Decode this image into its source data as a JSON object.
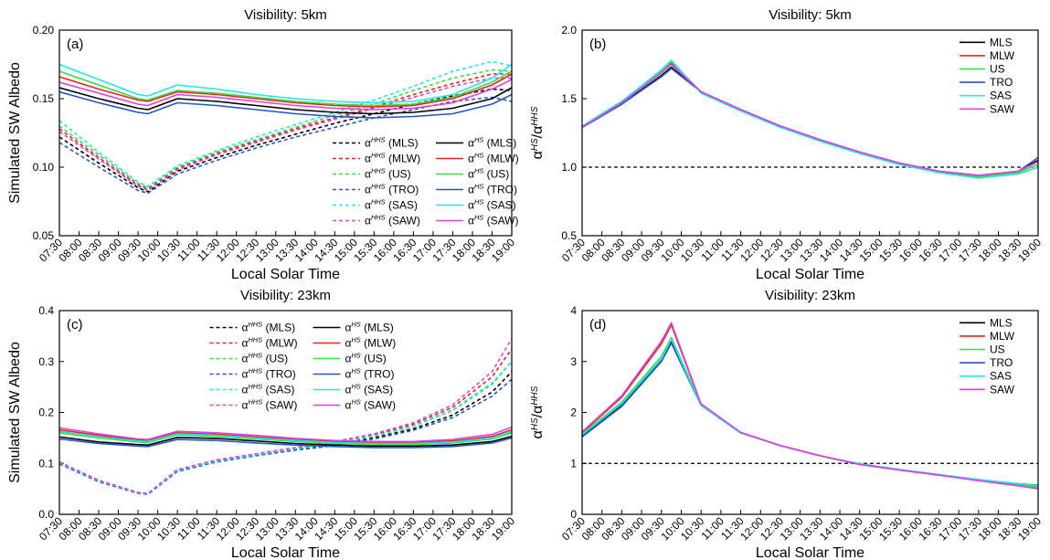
{
  "chart_data": [
    {
      "type": "line",
      "title": "Visibility: 5km",
      "panel_label": "(a)",
      "xlabel": "Local Solar Time",
      "ylabel": "Simulated SW Albedo",
      "x": [
        "07:30",
        "08:30",
        "09:30",
        "09:45",
        "10:30",
        "11:30",
        "12:30",
        "13:30",
        "14:30",
        "15:30",
        "16:30",
        "17:30",
        "18:30",
        "19:00"
      ],
      "xlim": [
        "07:30",
        "19:00"
      ],
      "xticks": [
        "07:30",
        "08:00",
        "08:30",
        "09:00",
        "09:30",
        "10:00",
        "10:30",
        "11:00",
        "11:30",
        "12:00",
        "12:30",
        "13:00",
        "13:30",
        "14:00",
        "14:30",
        "15:00",
        "15:30",
        "16:00",
        "16:30",
        "17:00",
        "17:30",
        "18:00",
        "18:30",
        "19:00"
      ],
      "ylim": [
        0.05,
        0.2
      ],
      "yticks": [
        0.05,
        {
          "value": 0.1,
          "label": "0.10"
        },
        0.15,
        {
          "value": 0.2,
          "label": "0.20"
        }
      ],
      "legend": "lower right",
      "series": [
        {
          "name": "αHHS (MLS)",
          "color": "#000000",
          "linestyle": "dashed",
          "values": [
            0.122,
            0.103,
            0.085,
            0.082,
            0.097,
            0.107,
            0.116,
            0.124,
            0.132,
            0.139,
            0.146,
            0.152,
            0.157,
            0.156
          ]
        },
        {
          "name": "αHHS (MLW)",
          "color": "#e8231c",
          "linestyle": "dashed",
          "values": [
            0.128,
            0.107,
            0.087,
            0.084,
            0.099,
            0.11,
            0.119,
            0.128,
            0.136,
            0.144,
            0.153,
            0.161,
            0.168,
            0.168
          ]
        },
        {
          "name": "αHHS (US)",
          "color": "#3cdc3c",
          "linestyle": "dashed",
          "values": [
            0.13,
            0.109,
            0.088,
            0.085,
            0.1,
            0.111,
            0.12,
            0.129,
            0.138,
            0.146,
            0.156,
            0.165,
            0.171,
            0.17
          ]
        },
        {
          "name": "αHHS (TRO)",
          "color": "#2356c8",
          "linestyle": "dashed",
          "values": [
            0.118,
            0.1,
            0.083,
            0.081,
            0.095,
            0.105,
            0.114,
            0.122,
            0.129,
            0.136,
            0.142,
            0.148,
            0.151,
            0.148
          ]
        },
        {
          "name": "αHHS (SAS)",
          "color": "#1ee8e8",
          "linestyle": "dashed",
          "values": [
            0.134,
            0.111,
            0.089,
            0.086,
            0.101,
            0.112,
            0.122,
            0.131,
            0.14,
            0.149,
            0.159,
            0.17,
            0.177,
            0.174
          ]
        },
        {
          "name": "αHHS (SAW)",
          "color": "#e040e0",
          "linestyle": "dashed",
          "values": [
            0.126,
            0.106,
            0.086,
            0.083,
            0.098,
            0.109,
            0.118,
            0.127,
            0.135,
            0.143,
            0.151,
            0.159,
            0.165,
            0.165
          ]
        },
        {
          "name": "αHS (MLS)",
          "color": "#000000",
          "linestyle": "solid",
          "values": [
            0.158,
            0.15,
            0.143,
            0.142,
            0.15,
            0.148,
            0.145,
            0.142,
            0.14,
            0.139,
            0.14,
            0.143,
            0.15,
            0.158
          ]
        },
        {
          "name": "αHS (MLW)",
          "color": "#e8231c",
          "linestyle": "solid",
          "values": [
            0.166,
            0.157,
            0.149,
            0.148,
            0.155,
            0.153,
            0.15,
            0.147,
            0.145,
            0.144,
            0.145,
            0.15,
            0.16,
            0.168
          ]
        },
        {
          "name": "αHS (US)",
          "color": "#3cdc3c",
          "linestyle": "solid",
          "values": [
            0.17,
            0.16,
            0.15,
            0.149,
            0.156,
            0.154,
            0.151,
            0.148,
            0.146,
            0.145,
            0.146,
            0.151,
            0.162,
            0.17
          ]
        },
        {
          "name": "αHS (TRO)",
          "color": "#2356c8",
          "linestyle": "solid",
          "values": [
            0.155,
            0.147,
            0.14,
            0.139,
            0.147,
            0.145,
            0.142,
            0.139,
            0.137,
            0.136,
            0.137,
            0.139,
            0.146,
            0.153
          ]
        },
        {
          "name": "αHS (SAS)",
          "color": "#1ee8e8",
          "linestyle": "solid",
          "values": [
            0.175,
            0.164,
            0.153,
            0.152,
            0.16,
            0.157,
            0.153,
            0.15,
            0.148,
            0.147,
            0.148,
            0.153,
            0.165,
            0.175
          ]
        },
        {
          "name": "αHS (SAW)",
          "color": "#e040e0",
          "linestyle": "solid",
          "values": [
            0.162,
            0.154,
            0.146,
            0.145,
            0.153,
            0.151,
            0.148,
            0.145,
            0.143,
            0.142,
            0.143,
            0.147,
            0.157,
            0.164
          ]
        }
      ]
    },
    {
      "type": "line",
      "title": "Visibility: 5km",
      "panel_label": "(b)",
      "xlabel": "Local Solar Time",
      "ylabel": "αHS/αHHS",
      "x": [
        "07:30",
        "08:30",
        "09:30",
        "09:45",
        "10:30",
        "11:30",
        "12:30",
        "13:30",
        "14:30",
        "15:30",
        "16:30",
        "17:30",
        "18:30",
        "19:00"
      ],
      "xlim": [
        "07:30",
        "19:00"
      ],
      "xticks": [
        "07:30",
        "08:00",
        "08:30",
        "09:00",
        "09:30",
        "10:00",
        "10:30",
        "11:00",
        "11:30",
        "12:00",
        "12:30",
        "13:00",
        "13:30",
        "14:00",
        "14:30",
        "15:00",
        "15:30",
        "16:00",
        "16:30",
        "17:00",
        "17:30",
        "18:00",
        "18:30",
        "19:00"
      ],
      "ylim": [
        0.5,
        2.0
      ],
      "yticks": [
        0.5,
        {
          "value": 1,
          "label": "1.0"
        },
        1.5,
        {
          "value": 2,
          "label": "2.0"
        }
      ],
      "legend": "upper right",
      "hline": 1,
      "series": [
        {
          "name": "MLS",
          "color": "#000000",
          "linestyle": "solid",
          "values": [
            1.29,
            1.46,
            1.67,
            1.73,
            1.55,
            1.42,
            1.3,
            1.2,
            1.11,
            1.03,
            0.97,
            0.94,
            0.97,
            1.05
          ]
        },
        {
          "name": "MLW",
          "color": "#e8231c",
          "linestyle": "solid",
          "values": [
            1.29,
            1.47,
            1.69,
            1.76,
            1.55,
            1.42,
            1.3,
            1.2,
            1.11,
            1.03,
            0.97,
            0.94,
            0.97,
            1.04
          ]
        },
        {
          "name": "US",
          "color": "#3cdc3c",
          "linestyle": "solid",
          "values": [
            1.3,
            1.48,
            1.7,
            1.77,
            1.55,
            1.42,
            1.3,
            1.19,
            1.1,
            1.02,
            0.96,
            0.93,
            0.96,
            1.02
          ]
        },
        {
          "name": "TRO",
          "color": "#2356c8",
          "linestyle": "solid",
          "values": [
            1.29,
            1.46,
            1.66,
            1.72,
            1.55,
            1.42,
            1.3,
            1.2,
            1.11,
            1.03,
            0.97,
            0.94,
            0.97,
            1.07
          ]
        },
        {
          "name": "SAS",
          "color": "#1ee8e8",
          "linestyle": "solid",
          "values": [
            1.3,
            1.48,
            1.71,
            1.78,
            1.54,
            1.41,
            1.29,
            1.19,
            1.1,
            1.02,
            0.96,
            0.92,
            0.95,
            1.0
          ]
        },
        {
          "name": "SAW",
          "color": "#e040e0",
          "linestyle": "solid",
          "values": [
            1.29,
            1.47,
            1.69,
            1.75,
            1.55,
            1.42,
            1.3,
            1.2,
            1.11,
            1.03,
            0.97,
            0.94,
            0.97,
            1.04
          ]
        }
      ]
    },
    {
      "type": "line",
      "title": "Visibility: 23km",
      "panel_label": "(c)",
      "xlabel": "Local Solar Time",
      "ylabel": "Simulated SW Albedo",
      "x": [
        "07:30",
        "08:30",
        "09:30",
        "09:45",
        "10:30",
        "11:30",
        "12:30",
        "13:30",
        "14:30",
        "15:30",
        "16:30",
        "17:30",
        "18:30",
        "19:00"
      ],
      "xlim": [
        "07:30",
        "19:00"
      ],
      "xticks": [
        "07:30",
        "08:00",
        "08:30",
        "09:00",
        "09:30",
        "10:00",
        "10:30",
        "11:00",
        "11:30",
        "12:00",
        "12:30",
        "13:00",
        "13:30",
        "14:00",
        "14:30",
        "15:00",
        "15:30",
        "16:00",
        "16:30",
        "17:00",
        "17:30",
        "18:00",
        "18:30",
        "19:00"
      ],
      "ylim": [
        0,
        0.4
      ],
      "yticks": [
        {
          "value": 0,
          "label": "0.0"
        },
        0.1,
        0.2,
        0.3,
        0.4
      ],
      "legend": "upper center",
      "series": [
        {
          "name": "αHHS (MLS)",
          "color": "#000000",
          "linestyle": "dashed",
          "values": [
            0.1,
            0.065,
            0.042,
            0.04,
            0.085,
            0.104,
            0.116,
            0.127,
            0.137,
            0.15,
            0.168,
            0.195,
            0.24,
            0.28
          ]
        },
        {
          "name": "αHHS (MLW)",
          "color": "#e8231c",
          "linestyle": "dashed",
          "values": [
            0.102,
            0.066,
            0.042,
            0.04,
            0.087,
            0.106,
            0.118,
            0.13,
            0.141,
            0.156,
            0.177,
            0.21,
            0.27,
            0.325
          ]
        },
        {
          "name": "αHHS (US)",
          "color": "#3cdc3c",
          "linestyle": "dashed",
          "values": [
            0.101,
            0.066,
            0.042,
            0.04,
            0.086,
            0.105,
            0.117,
            0.128,
            0.139,
            0.153,
            0.173,
            0.204,
            0.255,
            0.3
          ]
        },
        {
          "name": "αHHS (TRO)",
          "color": "#2356c8",
          "linestyle": "dashed",
          "values": [
            0.099,
            0.064,
            0.041,
            0.039,
            0.084,
            0.103,
            0.115,
            0.126,
            0.135,
            0.148,
            0.165,
            0.19,
            0.232,
            0.265
          ]
        },
        {
          "name": "αHHS (SAS)",
          "color": "#1ee8e8",
          "linestyle": "dashed",
          "values": [
            0.101,
            0.066,
            0.042,
            0.04,
            0.086,
            0.105,
            0.117,
            0.129,
            0.14,
            0.154,
            0.174,
            0.205,
            0.258,
            0.3
          ]
        },
        {
          "name": "αHHS (SAW)",
          "color": "#e040e0",
          "linestyle": "dashed",
          "values": [
            0.103,
            0.067,
            0.043,
            0.041,
            0.088,
            0.107,
            0.119,
            0.131,
            0.143,
            0.158,
            0.18,
            0.215,
            0.28,
            0.345
          ]
        },
        {
          "name": "αHS (MLS)",
          "color": "#000000",
          "linestyle": "solid",
          "values": [
            0.152,
            0.142,
            0.137,
            0.136,
            0.151,
            0.149,
            0.144,
            0.139,
            0.136,
            0.134,
            0.134,
            0.136,
            0.143,
            0.153
          ]
        },
        {
          "name": "αHS (MLW)",
          "color": "#e8231c",
          "linestyle": "solid",
          "values": [
            0.166,
            0.155,
            0.146,
            0.145,
            0.16,
            0.157,
            0.152,
            0.147,
            0.143,
            0.141,
            0.141,
            0.144,
            0.153,
            0.166
          ]
        },
        {
          "name": "αHS (US)",
          "color": "#3cdc3c",
          "linestyle": "solid",
          "values": [
            0.16,
            0.15,
            0.142,
            0.141,
            0.156,
            0.153,
            0.148,
            0.143,
            0.139,
            0.137,
            0.137,
            0.14,
            0.148,
            0.16
          ]
        },
        {
          "name": "αHS (TRO)",
          "color": "#2356c8",
          "linestyle": "solid",
          "values": [
            0.148,
            0.139,
            0.134,
            0.133,
            0.147,
            0.145,
            0.14,
            0.136,
            0.133,
            0.131,
            0.131,
            0.133,
            0.14,
            0.15
          ]
        },
        {
          "name": "αHS (SAS)",
          "color": "#1ee8e8",
          "linestyle": "solid",
          "values": [
            0.163,
            0.152,
            0.144,
            0.143,
            0.158,
            0.155,
            0.15,
            0.145,
            0.141,
            0.139,
            0.139,
            0.142,
            0.15,
            0.163
          ]
        },
        {
          "name": "αHS (SAW)",
          "color": "#e040e0",
          "linestyle": "solid",
          "values": [
            0.17,
            0.158,
            0.148,
            0.147,
            0.163,
            0.16,
            0.155,
            0.149,
            0.145,
            0.143,
            0.143,
            0.147,
            0.157,
            0.171
          ]
        }
      ]
    },
    {
      "type": "line",
      "title": "Visibility: 23km",
      "panel_label": "(d)",
      "xlabel": "Local Solar Time",
      "ylabel": "αHS/αHHS",
      "x": [
        "07:30",
        "08:30",
        "09:30",
        "09:45",
        "10:30",
        "11:30",
        "12:30",
        "13:30",
        "14:30",
        "15:30",
        "16:30",
        "17:30",
        "18:30",
        "19:00"
      ],
      "xlim": [
        "07:30",
        "19:00"
      ],
      "xticks": [
        "07:30",
        "08:00",
        "08:30",
        "09:00",
        "09:30",
        "10:00",
        "10:30",
        "11:00",
        "11:30",
        "12:00",
        "12:30",
        "13:00",
        "13:30",
        "14:00",
        "14:30",
        "15:00",
        "15:30",
        "16:00",
        "16:30",
        "17:00",
        "17:30",
        "18:00",
        "18:30",
        "19:00"
      ],
      "ylim": [
        0,
        4
      ],
      "yticks": [
        0,
        1,
        2,
        3,
        4
      ],
      "legend": "upper right",
      "hline": 1,
      "series": [
        {
          "name": "MLS",
          "color": "#000000",
          "linestyle": "solid",
          "values": [
            1.55,
            2.15,
            3.02,
            3.38,
            2.14,
            1.6,
            1.35,
            1.15,
            0.98,
            0.87,
            0.77,
            0.67,
            0.58,
            0.53
          ]
        },
        {
          "name": "MLW",
          "color": "#e8231c",
          "linestyle": "solid",
          "values": [
            1.6,
            2.3,
            3.35,
            3.72,
            2.16,
            1.6,
            1.35,
            1.15,
            0.98,
            0.87,
            0.77,
            0.67,
            0.57,
            0.51
          ]
        },
        {
          "name": "US",
          "color": "#3cdc3c",
          "linestyle": "solid",
          "values": [
            1.58,
            2.2,
            3.1,
            3.47,
            2.15,
            1.6,
            1.35,
            1.15,
            0.98,
            0.87,
            0.77,
            0.67,
            0.58,
            0.53
          ]
        },
        {
          "name": "TRO",
          "color": "#2356c8",
          "linestyle": "solid",
          "values": [
            1.52,
            2.12,
            3.0,
            3.36,
            2.14,
            1.6,
            1.35,
            1.15,
            0.99,
            0.88,
            0.78,
            0.68,
            0.6,
            0.57
          ]
        },
        {
          "name": "SAS",
          "color": "#1ee8e8",
          "linestyle": "solid",
          "values": [
            1.56,
            2.17,
            3.05,
            3.44,
            2.14,
            1.6,
            1.35,
            1.15,
            0.99,
            0.88,
            0.78,
            0.68,
            0.6,
            0.56
          ]
        },
        {
          "name": "SAW",
          "color": "#e040e0",
          "linestyle": "solid",
          "values": [
            1.62,
            2.33,
            3.4,
            3.76,
            2.17,
            1.61,
            1.35,
            1.15,
            0.98,
            0.87,
            0.77,
            0.66,
            0.56,
            0.5
          ]
        }
      ]
    }
  ]
}
